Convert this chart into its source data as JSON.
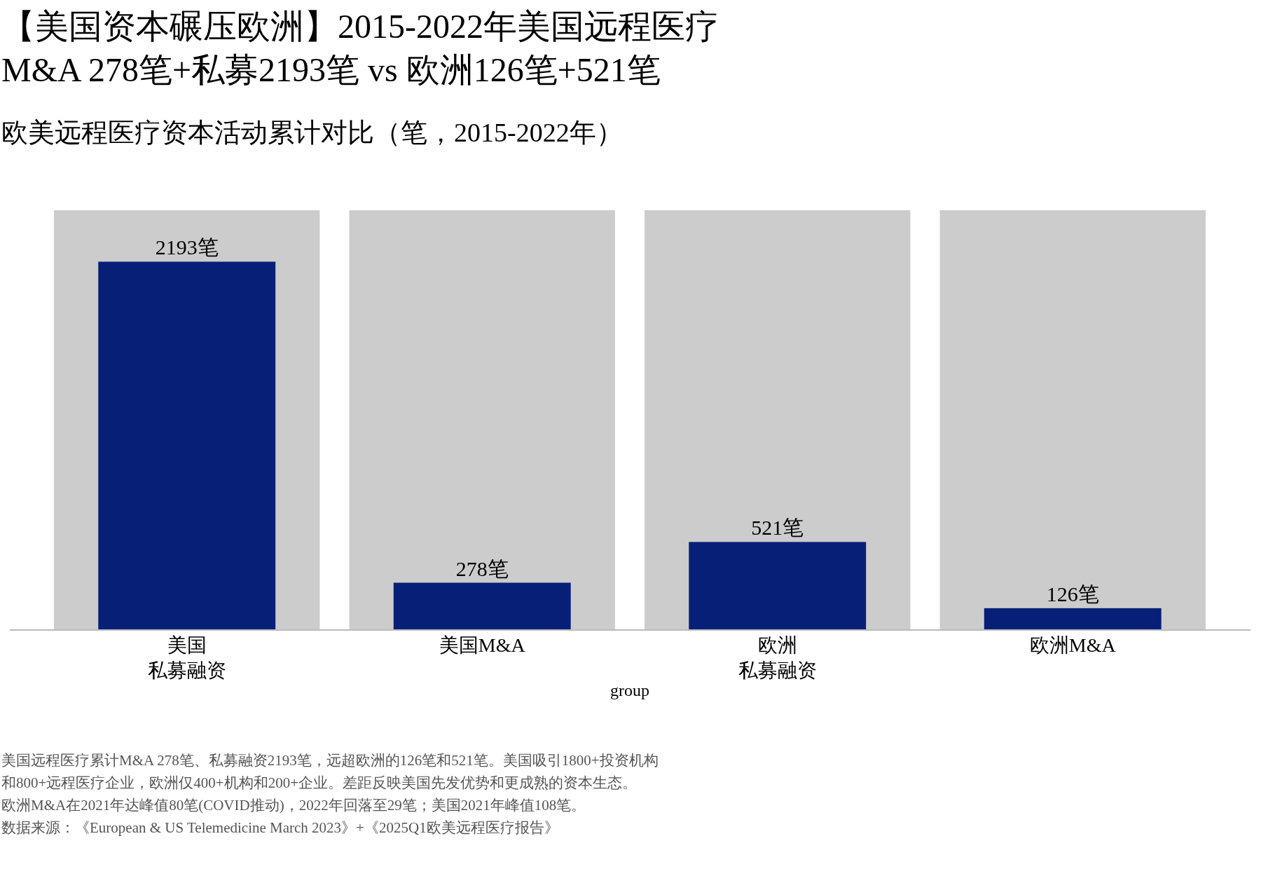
{
  "chart_data": {
    "type": "bar",
    "title": "【美国资本碾压欧洲】2015-2022年美国远程医疗\nM&A 278笔+私募2193笔 vs 欧洲126笔+521笔",
    "subtitle": "欧美远程医疗资本活动累计对比（笔，2015-2022年）",
    "xlabel": "group",
    "categories": [
      "美国私募融资",
      "美国M&A",
      "欧洲私募融资",
      "欧洲M&A"
    ],
    "series": [
      {
        "color": "#081f78",
        "values": [
          2193,
          278,
          521,
          126
        ],
        "value_labels": [
          "2193笔",
          "278笔",
          "521笔",
          "126笔"
        ]
      }
    ],
    "bands": [
      {
        "axis": "x",
        "from": "美国私募融资",
        "to": "美国私募融资",
        "color": "#cccccc"
      },
      {
        "axis": "x",
        "from": "美国M&A",
        "to": "美国M&A",
        "color": "#cccccc"
      },
      {
        "axis": "x",
        "from": "欧洲私募融资",
        "to": "欧洲私募融资",
        "color": "#cccccc"
      },
      {
        "axis": "x",
        "from": "欧洲M&A",
        "to": "欧洲M&A",
        "color": "#cccccc"
      }
    ],
    "annotations": [
      "美国远程医疗累计M&A 278笔、私募融资2193笔，远超欧洲的126笔和521笔。美国吸引1800+投资机构",
      "和800+远程医疗企业，欧洲仅400+机构和200+企业。差距反映美国先发优势和更成熟的资本生态。",
      "欧洲M&A在2021年达峰值80笔(COVID推动)，2022年回落至29笔；美国2021年峰值108笔。",
      "数据来源：《European & US Telemedicine March 2023》+《2025Q1欧美远程医疗报告》"
    ]
  }
}
